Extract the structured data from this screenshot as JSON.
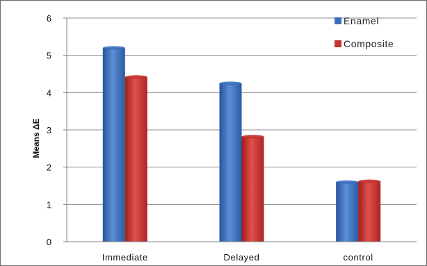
{
  "chart_data": {
    "type": "bar",
    "categories": [
      "Immediate",
      "Delayed",
      "control"
    ],
    "series": [
      {
        "name": "Enamel",
        "values": [
          5.2,
          4.25,
          1.6
        ],
        "color": "#3a6fc0"
      },
      {
        "name": "Composite",
        "values": [
          4.42,
          2.82,
          1.62
        ],
        "color": "#c8312d"
      }
    ],
    "ylabel": "Means ΔE",
    "xlabel": "",
    "ylim": [
      0,
      6
    ],
    "yticks": [
      "0",
      "1",
      "2",
      "3",
      "4",
      "5",
      "6"
    ],
    "grid": true,
    "legend_position": "top-right"
  }
}
